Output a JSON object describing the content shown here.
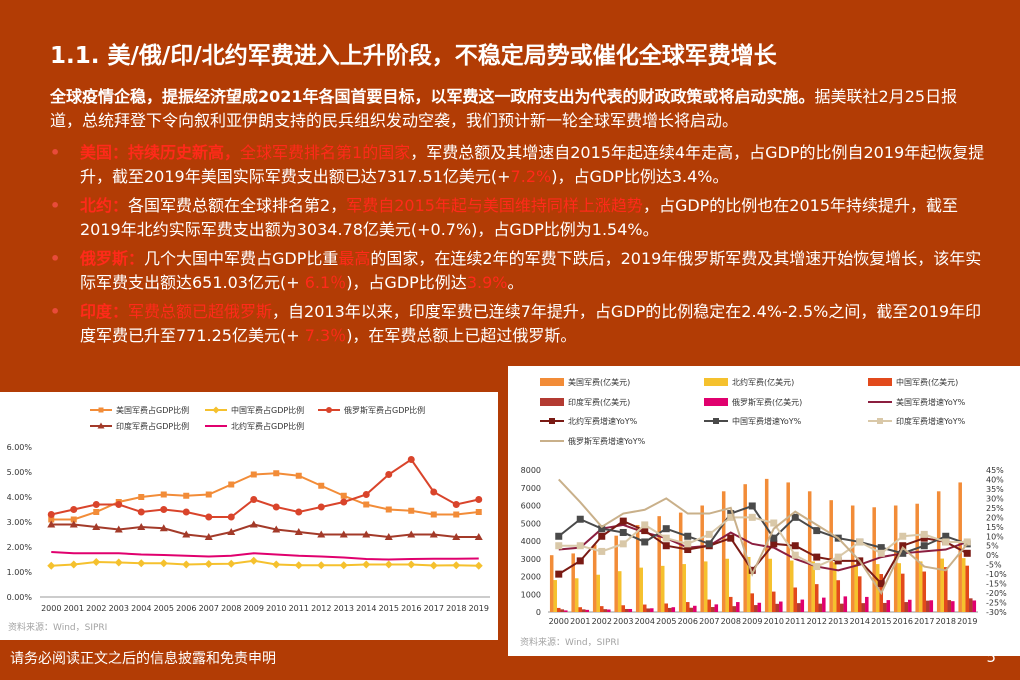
{
  "header": {
    "title": "1.1. 美/俄/印/北约军费进入上升阶段，不稳定局势或催化全球军费增长"
  },
  "intro": {
    "bold": "全球疫情企稳，提振经济望成2021年各国首要目标，以军费这一政府支出为代表的财政政策或将启动实施。",
    "rest": "据美联社2月25日报道，总统拜登下令向叙利亚伊朗支持的民兵组织发动空袭，我们预计新一轮全球军费增长将启动。"
  },
  "bullets": [
    {
      "parts": [
        {
          "t": "美国：持续历史新高，",
          "c": "hl"
        },
        {
          "t": "全球军费排名第1的国家",
          "c": "red"
        },
        {
          "t": "，军费总额及其增速自2015年起连续4年走高，占GDP的比例自2019年起恢复提升，截至2019年美国实际军费支出额已达7317.51亿美元(+",
          "c": ""
        },
        {
          "t": "7.2%",
          "c": "red"
        },
        {
          "t": ")，占GDP比例达3.4%。",
          "c": ""
        }
      ]
    },
    {
      "parts": [
        {
          "t": "北约：",
          "c": "hl"
        },
        {
          "t": "各国军费总额在全球排名第2，",
          "c": ""
        },
        {
          "t": "军费自2015年起与美国维持同样上涨趋势",
          "c": "red"
        },
        {
          "t": "，占GDP的比例也在2015年持续提升，截至2019年北约实际军费支出额为3034.78亿美元(+0.7%)，占GDP比例为1.54%。",
          "c": ""
        }
      ]
    },
    {
      "parts": [
        {
          "t": "俄罗斯：",
          "c": "hl"
        },
        {
          "t": "几个大国中军费占GDP比重",
          "c": ""
        },
        {
          "t": "最高",
          "c": "red"
        },
        {
          "t": "的国家，在连续2年的军费下跌后，2019年俄罗斯军费及其增速开始恢复增长，该年实际军费支出额达651.03亿元(+ ",
          "c": ""
        },
        {
          "t": "6.1％",
          "c": "red"
        },
        {
          "t": ")，占GDP比例达",
          "c": ""
        },
        {
          "t": "3.9%",
          "c": "red"
        },
        {
          "t": "。",
          "c": ""
        }
      ]
    },
    {
      "parts": [
        {
          "t": "印度：",
          "c": "hl"
        },
        {
          "t": "军费总额已超俄罗斯",
          "c": "red"
        },
        {
          "t": "，自2013年以来，印度军费已连续7年提升，占GDP的比例稳定在2.4%-2.5%之间，截至2019年印度军费已升至771.25亿美元(+ ",
          "c": ""
        },
        {
          "t": "7.3％",
          "c": "red"
        },
        {
          "t": ")，在军费总额上已超过俄罗斯。",
          "c": ""
        }
      ]
    }
  ],
  "chart_data": [
    {
      "type": "line",
      "x": [
        "2000",
        "2001",
        "2002",
        "2003",
        "2004",
        "2005",
        "2006",
        "2007",
        "2008",
        "2009",
        "2010",
        "2011",
        "2012",
        "2013",
        "2014",
        "2015",
        "2016",
        "2017",
        "2018",
        "2019"
      ],
      "yticks": [
        "0.00%",
        "1.00%",
        "2.00%",
        "3.00%",
        "4.00%",
        "5.00%",
        "6.00%"
      ],
      "ylim": [
        0,
        6
      ],
      "legend_position": "top",
      "source": "资料来源：Wind，SIPRI",
      "series": [
        {
          "name": "美国军费占GDP比例",
          "color": "#F28C38",
          "marker": "square",
          "values": [
            3.1,
            3.1,
            3.4,
            3.8,
            4.0,
            4.1,
            4.05,
            4.1,
            4.5,
            4.9,
            4.95,
            4.85,
            4.45,
            4.05,
            3.7,
            3.5,
            3.45,
            3.3,
            3.3,
            3.4
          ]
        },
        {
          "name": "中国军费占GDP比例",
          "color": "#F5C12E",
          "marker": "diamond",
          "values": [
            1.25,
            1.3,
            1.4,
            1.38,
            1.35,
            1.35,
            1.3,
            1.32,
            1.33,
            1.45,
            1.3,
            1.27,
            1.27,
            1.27,
            1.3,
            1.3,
            1.3,
            1.26,
            1.27,
            1.25
          ]
        },
        {
          "name": "俄罗斯军费占GDP比例",
          "color": "#D9442B",
          "marker": "circle",
          "values": [
            3.3,
            3.5,
            3.7,
            3.7,
            3.4,
            3.5,
            3.4,
            3.2,
            3.2,
            3.9,
            3.6,
            3.4,
            3.6,
            3.8,
            4.1,
            4.9,
            5.5,
            4.2,
            3.7,
            3.9
          ]
        },
        {
          "name": "印度军费占GDP比例",
          "color": "#A33A29",
          "marker": "triangle",
          "values": [
            2.9,
            2.9,
            2.8,
            2.7,
            2.8,
            2.75,
            2.5,
            2.4,
            2.6,
            2.9,
            2.7,
            2.6,
            2.5,
            2.5,
            2.5,
            2.4,
            2.5,
            2.5,
            2.4,
            2.4
          ]
        },
        {
          "name": "北约军费占GDP比例",
          "color": "#E0006E",
          "marker": "dash",
          "values": [
            1.8,
            1.75,
            1.75,
            1.75,
            1.7,
            1.68,
            1.65,
            1.62,
            1.65,
            1.75,
            1.7,
            1.65,
            1.62,
            1.58,
            1.52,
            1.5,
            1.52,
            1.53,
            1.53,
            1.54
          ]
        }
      ]
    },
    {
      "type": "bar",
      "x": [
        "2000",
        "2001",
        "2002",
        "2003",
        "2004",
        "2005",
        "2006",
        "2007",
        "2008",
        "2009",
        "2010",
        "2011",
        "2012",
        "2013",
        "2014",
        "2015",
        "2016",
        "2017",
        "2018",
        "2019"
      ],
      "yticks_left": [
        "0",
        "1000",
        "2000",
        "3000",
        "4000",
        "5000",
        "6000",
        "7000",
        "8000"
      ],
      "ylim_left": [
        0,
        8000
      ],
      "yticks_right": [
        "-30%",
        "-25%",
        "-20%",
        "-15%",
        "-10%",
        "-5%",
        "0%",
        "5%",
        "10%",
        "15%",
        "20%",
        "25%",
        "30%",
        "35%",
        "40%",
        "45%"
      ],
      "ylim_right": [
        -30,
        45
      ],
      "legend_position": "top",
      "source": "资料来源：Wind，SIPRI",
      "bar_series": [
        {
          "name": "美国军费(亿美元)",
          "color": "#F28C38",
          "values": [
            3200,
            3300,
            3800,
            4300,
            4900,
            5400,
            5600,
            6000,
            6800,
            7200,
            7500,
            7300,
            6800,
            6300,
            6000,
            5900,
            6000,
            6100,
            6800,
            7300
          ]
        },
        {
          "name": "北约军费(亿美元)",
          "color": "#F5C12E",
          "values": [
            1800,
            1900,
            2100,
            2300,
            2500,
            2600,
            2700,
            2850,
            3000,
            3100,
            3000,
            2900,
            2850,
            2800,
            2700,
            2700,
            2750,
            2850,
            3010,
            3035
          ]
        },
        {
          "name": "中国军费(亿美元)",
          "color": "#E24A1C",
          "values": [
            230,
            270,
            330,
            380,
            420,
            480,
            560,
            700,
            850,
            1050,
            1150,
            1380,
            1570,
            1790,
            2010,
            2140,
            2160,
            2280,
            2530,
            2610
          ]
        },
        {
          "name": "印度军费(亿美元)",
          "color": "#B33A31",
          "values": [
            150,
            150,
            160,
            170,
            200,
            230,
            240,
            280,
            330,
            390,
            460,
            500,
            470,
            470,
            500,
            510,
            560,
            640,
            670,
            770
          ]
        },
        {
          "name": "俄罗斯军费(亿美元)",
          "color": "#E0006E",
          "values": [
            90,
            120,
            140,
            170,
            210,
            270,
            350,
            430,
            560,
            520,
            590,
            700,
            810,
            880,
            850,
            670,
            690,
            660,
            610,
            650
          ]
        }
      ],
      "line_series": [
        {
          "name": "美国军费增速YoY%",
          "color": "#8B1E3F",
          "marker": "none",
          "values": [
            3,
            4,
            14,
            16,
            12,
            9,
            4,
            5,
            12,
            6,
            4,
            -2,
            -6,
            -8,
            -5,
            -1,
            1,
            2,
            3,
            7
          ]
        },
        {
          "name": "北约军费增速YoY%",
          "color": "#7A1A14",
          "marker": "square",
          "values": [
            -10,
            -3,
            10,
            18,
            13,
            5,
            3,
            5,
            9,
            -8,
            6,
            5,
            -1,
            -3,
            -3,
            -15,
            5,
            9,
            7,
            1
          ]
        },
        {
          "name": "中国军费增速YoY%",
          "color": "#4A4A4A",
          "marker": "square",
          "values": [
            10,
            19,
            14,
            12,
            7,
            14,
            10,
            6,
            22,
            26,
            9,
            20,
            13,
            9,
            7,
            4,
            1,
            5,
            10,
            6
          ]
        },
        {
          "name": "印度军费增速YoY%",
          "color": "#D9C8A8",
          "marker": "square",
          "values": [
            5,
            5,
            2,
            6,
            16,
            9,
            6,
            11,
            20,
            20,
            17,
            0,
            -6,
            -1,
            7,
            1,
            10,
            11,
            7,
            7
          ]
        },
        {
          "name": "俄罗斯军费增速YoY%",
          "color": "#C9B08A",
          "marker": "none",
          "values": [
            40,
            28,
            15,
            22,
            24,
            30,
            22,
            22,
            25,
            -10,
            14,
            23,
            16,
            9,
            -3,
            -20,
            4,
            -6,
            -8,
            6
          ]
        }
      ]
    }
  ],
  "footer": {
    "disclaimer": "请务必阅读正文之后的信息披露和免责申明",
    "page": "5"
  }
}
